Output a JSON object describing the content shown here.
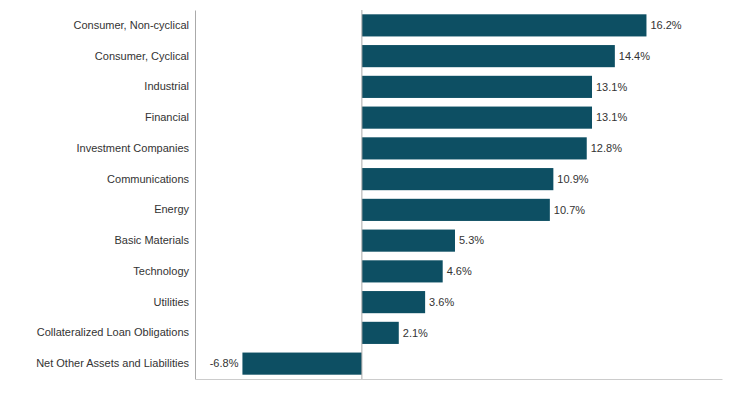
{
  "chart_data": {
    "type": "bar",
    "orientation": "horizontal",
    "categories": [
      "Consumer, Non-cyclical",
      "Consumer, Cyclical",
      "Industrial",
      "Financial",
      "Investment Companies",
      "Communications",
      "Energy",
      "Basic Materials",
      "Technology",
      "Utilities",
      "Collateralized Loan Obligations",
      "Net Other Assets and Liabilities"
    ],
    "values": [
      16.2,
      14.4,
      13.1,
      13.1,
      12.8,
      10.9,
      10.7,
      5.3,
      4.6,
      3.6,
      2.1,
      -6.8
    ],
    "value_labels": [
      "16.2%",
      "14.4%",
      "13.1%",
      "13.1%",
      "12.8%",
      "10.9%",
      "10.7%",
      "5.3%",
      "4.6%",
      "3.6%",
      "2.1%",
      "-6.8%"
    ],
    "color": "#0d4f63",
    "xlim": [
      -9.5,
      20.5
    ],
    "data_labels": true,
    "tick_labels": "y",
    "grid": false
  }
}
